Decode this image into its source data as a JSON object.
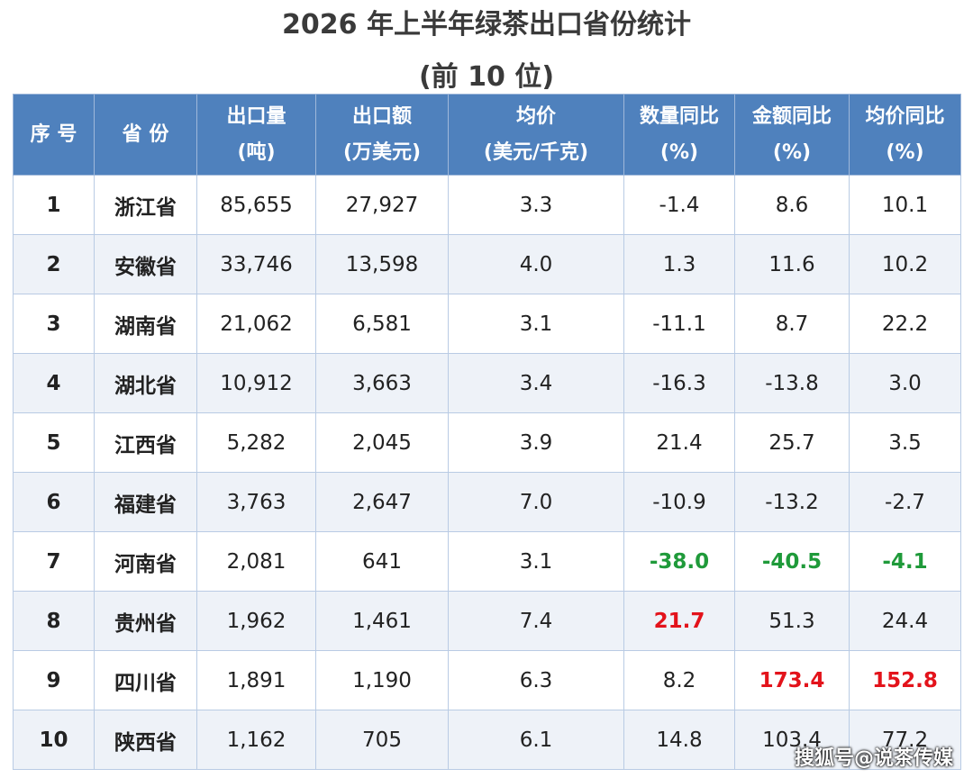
{
  "title": "2026 年上半年绿茶出口省份统计",
  "subtitle": "(前 10 位)",
  "table": {
    "header": [
      [
        "序 号"
      ],
      [
        "省 份"
      ],
      [
        "出口量",
        "(吨)"
      ],
      [
        "出口额",
        "(万美元)"
      ],
      [
        "均价",
        "(美元/千克)"
      ],
      [
        "数量同比",
        "(%)"
      ],
      [
        "金额同比",
        "(%)"
      ],
      [
        "均价同比",
        "(%)"
      ]
    ],
    "rows": [
      [
        "1",
        "浙江省",
        "85,655",
        "27,927",
        "3.3",
        "-1.4",
        "8.6",
        "10.1"
      ],
      [
        "2",
        "安徽省",
        "33,746",
        "13,598",
        "4.0",
        "1.3",
        "11.6",
        "10.2"
      ],
      [
        "3",
        "湖南省",
        "21,062",
        "6,581",
        "3.1",
        "-11.1",
        "8.7",
        "22.2"
      ],
      [
        "4",
        "湖北省",
        "10,912",
        "3,663",
        "3.4",
        "-16.3",
        "-13.8",
        "3.0"
      ],
      [
        "5",
        "江西省",
        "5,282",
        "2,045",
        "3.9",
        "21.4",
        "25.7",
        "3.5"
      ],
      [
        "6",
        "福建省",
        "3,763",
        "2,647",
        "7.0",
        "-10.9",
        "-13.2",
        "-2.7"
      ],
      [
        "7",
        "河南省",
        "2,081",
        "641",
        "3.1",
        "-38.0",
        "-40.5",
        "-4.1"
      ],
      [
        "8",
        "贵州省",
        "1,962",
        "1,461",
        "7.4",
        "21.7",
        "51.3",
        "24.4"
      ],
      [
        "9",
        "四川省",
        "1,891",
        "1,190",
        "6.3",
        "8.2",
        "173.4",
        "152.8"
      ],
      [
        "10",
        "陕西省",
        "1,162",
        "705",
        "6.1",
        "14.8",
        "103.4",
        "77.2"
      ]
    ],
    "highlight_colors": {
      "green": "#1f9a3a",
      "red": "#e3131b"
    },
    "highlights": [
      [
        6,
        5,
        "green"
      ],
      [
        6,
        6,
        "green"
      ],
      [
        6,
        7,
        "green"
      ],
      [
        7,
        5,
        "red"
      ],
      [
        8,
        6,
        "red"
      ],
      [
        8,
        7,
        "red"
      ]
    ]
  },
  "watermark": "搜狐号@说茶传媒"
}
